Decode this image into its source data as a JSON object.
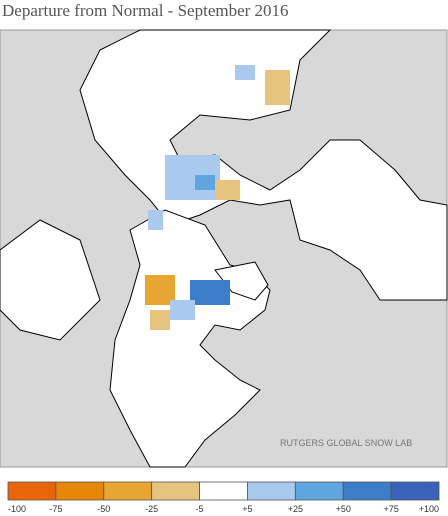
{
  "header": {
    "title": "Departure from Normal - September 2016"
  },
  "map": {
    "credit": "RUTGERS GLOBAL SNOW LAB"
  },
  "legend": {
    "labels": [
      "-100",
      "-75",
      "-50",
      "-25",
      "-5",
      "+5",
      "+25",
      "+50",
      "+75",
      "+100"
    ],
    "colors": [
      "#e8650a",
      "#e8860a",
      "#e8a532",
      "#e6c47f",
      "#ffffff",
      "#a9c9ee",
      "#5fa5e0",
      "#3b7dc8",
      "#3a62b8"
    ]
  }
}
